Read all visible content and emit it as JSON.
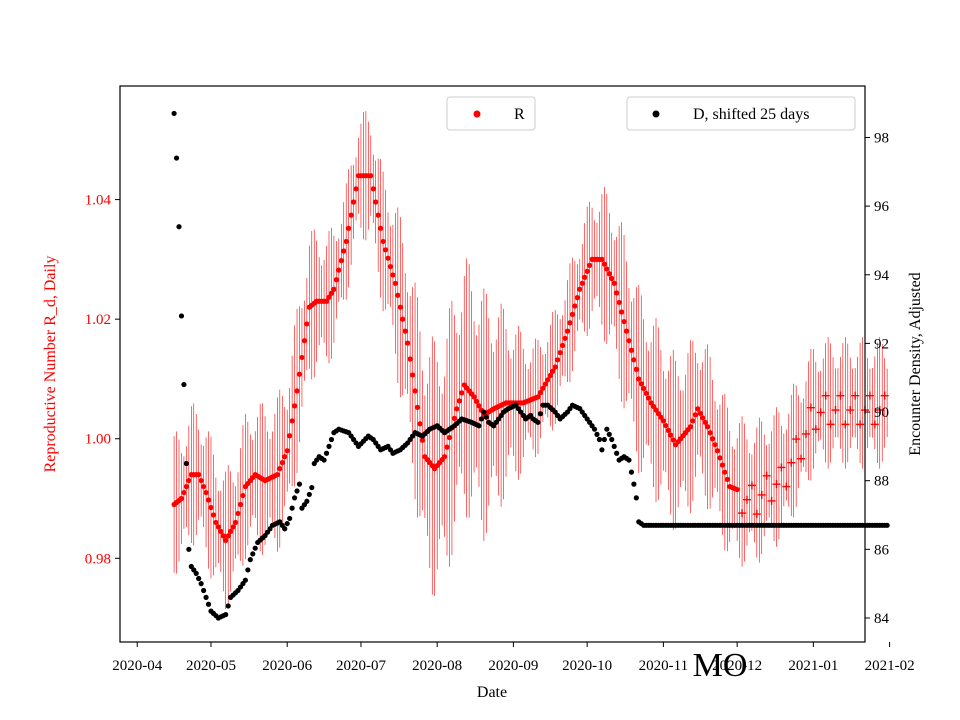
{
  "chart_data": {
    "type": "scatter",
    "xlabel": "Date",
    "ylabel_left": "Reproductive Number R_d, Daily",
    "ylabel_right": "Encounter Density, Adjusted",
    "ylim_left": [
      0.966,
      1.059
    ],
    "ylim_right": [
      83.3,
      99.5
    ],
    "xlim_days": [
      -7,
      296
    ],
    "x_origin": "2020-04-01",
    "x_ticks": [
      {
        "label": "2020-04",
        "day": 0
      },
      {
        "label": "2020-05",
        "day": 30
      },
      {
        "label": "2020-06",
        "day": 61
      },
      {
        "label": "2020-07",
        "day": 91
      },
      {
        "label": "2020-08",
        "day": 122
      },
      {
        "label": "2020-09",
        "day": 153
      },
      {
        "label": "2020-10",
        "day": 183
      },
      {
        "label": "2020-11",
        "day": 214
      },
      {
        "label": "2020-12",
        "day": 244
      },
      {
        "label": "2021-01",
        "day": 275
      },
      {
        "label": "2021-02",
        "day": 306
      }
    ],
    "y_ticks_left": [
      "0.98",
      "1.00",
      "1.02",
      "1.04"
    ],
    "y_ticks_left_values": [
      0.98,
      1.0,
      1.02,
      1.04
    ],
    "y_ticks_right": [
      "84",
      "86",
      "88",
      "90",
      "92",
      "94",
      "96",
      "98"
    ],
    "y_ticks_right_values": [
      84,
      86,
      88,
      90,
      92,
      94,
      96,
      98
    ],
    "annotation": "MO",
    "legend": [
      {
        "label": "R",
        "color": "#ff0000",
        "position": "top-center"
      },
      {
        "label": "D, shifted 25 days",
        "color": "#000000",
        "position": "top-right"
      }
    ],
    "series_R": {
      "name": "R",
      "color": "#ff0000",
      "x_range": [
        15,
        305
      ],
      "marker_dot_until_day": 245,
      "marker_after": "plus",
      "anchors": [
        [
          15,
          0.989
        ],
        [
          18,
          0.99
        ],
        [
          22,
          0.994
        ],
        [
          25,
          0.994
        ],
        [
          28,
          0.991
        ],
        [
          32,
          0.986
        ],
        [
          36,
          0.983
        ],
        [
          40,
          0.986
        ],
        [
          44,
          0.992
        ],
        [
          48,
          0.994
        ],
        [
          52,
          0.993
        ],
        [
          57,
          0.994
        ],
        [
          61,
          0.998
        ],
        [
          65,
          1.008
        ],
        [
          70,
          1.022
        ],
        [
          73,
          1.023
        ],
        [
          77,
          1.023
        ],
        [
          80,
          1.025
        ],
        [
          85,
          1.033
        ],
        [
          90,
          1.044
        ],
        [
          95,
          1.044
        ],
        [
          100,
          1.033
        ],
        [
          105,
          1.026
        ],
        [
          110,
          1.016
        ],
        [
          113,
          1.008
        ],
        [
          117,
          0.997
        ],
        [
          121,
          0.995
        ],
        [
          125,
          0.997
        ],
        [
          130,
          1.005
        ],
        [
          133,
          1.009
        ],
        [
          137,
          1.007
        ],
        [
          141,
          1.004
        ],
        [
          145,
          1.005
        ],
        [
          150,
          1.006
        ],
        [
          157,
          1.006
        ],
        [
          163,
          1.007
        ],
        [
          170,
          1.012
        ],
        [
          175,
          1.018
        ],
        [
          180,
          1.025
        ],
        [
          185,
          1.03
        ],
        [
          189,
          1.03
        ],
        [
          194,
          1.026
        ],
        [
          199,
          1.018
        ],
        [
          204,
          1.01
        ],
        [
          209,
          1.006
        ],
        [
          214,
          1.003
        ],
        [
          219,
          0.999
        ],
        [
          225,
          1.002
        ],
        [
          228,
          1.005
        ],
        [
          232,
          1.002
        ],
        [
          236,
          0.998
        ],
        [
          241,
          0.992
        ],
        [
          247,
          0.991
        ],
        [
          252,
          0.991
        ],
        [
          257,
          0.993
        ],
        [
          262,
          0.994
        ],
        [
          267,
          0.998
        ],
        [
          271,
          1.001
        ],
        [
          275,
          1.005
        ],
        [
          280,
          1.006
        ],
        [
          284,
          1.006
        ],
        [
          288,
          1.006
        ]
      ],
      "error_half_width": [
        [
          15,
          0.012
        ],
        [
          40,
          0.012
        ],
        [
          65,
          0.014
        ],
        [
          85,
          0.01
        ],
        [
          100,
          0.012
        ],
        [
          120,
          0.022
        ],
        [
          140,
          0.022
        ],
        [
          160,
          0.01
        ],
        [
          180,
          0.01
        ],
        [
          200,
          0.016
        ],
        [
          220,
          0.015
        ],
        [
          240,
          0.013
        ],
        [
          270,
          0.011
        ],
        [
          288,
          0.011
        ]
      ]
    },
    "series_D": {
      "name": "D, shifted 25 days",
      "color": "#000000",
      "x_range": [
        15,
        305
      ],
      "anchors": [
        [
          15,
          98.7
        ],
        [
          16,
          97.4
        ],
        [
          17,
          95.4
        ],
        [
          18,
          92.8
        ],
        [
          19,
          90.8
        ],
        [
          20,
          88.5
        ],
        [
          21,
          86.0
        ],
        [
          22,
          85.5
        ],
        [
          24,
          85.3
        ],
        [
          26,
          85.0
        ],
        [
          28,
          84.6
        ],
        [
          30,
          84.2
        ],
        [
          33,
          84.0
        ],
        [
          36,
          84.1
        ],
        [
          38,
          84.6
        ],
        [
          41,
          84.8
        ],
        [
          44,
          85.1
        ],
        [
          46,
          85.7
        ],
        [
          49,
          86.2
        ],
        [
          52,
          86.4
        ],
        [
          55,
          86.7
        ],
        [
          58,
          86.8
        ],
        [
          60,
          86.6
        ],
        [
          62,
          86.9
        ],
        [
          64,
          87.5
        ],
        [
          66,
          87.9
        ],
        [
          67,
          87.2
        ],
        [
          69,
          87.4
        ],
        [
          71,
          87.8
        ],
        [
          72,
          88.5
        ],
        [
          74,
          88.7
        ],
        [
          76,
          88.6
        ],
        [
          78,
          89.0
        ],
        [
          80,
          89.4
        ],
        [
          82,
          89.5
        ],
        [
          86,
          89.4
        ],
        [
          88,
          89.2
        ],
        [
          90,
          89.0
        ],
        [
          94,
          89.3
        ],
        [
          96,
          89.2
        ],
        [
          99,
          88.9
        ],
        [
          102,
          89.0
        ],
        [
          104,
          88.8
        ],
        [
          107,
          88.9
        ],
        [
          110,
          89.1
        ],
        [
          113,
          89.4
        ],
        [
          116,
          89.3
        ],
        [
          119,
          89.5
        ],
        [
          122,
          89.6
        ],
        [
          125,
          89.4
        ],
        [
          129,
          89.6
        ],
        [
          132,
          89.8
        ],
        [
          136,
          89.7
        ],
        [
          139,
          89.6
        ],
        [
          141,
          90.0
        ],
        [
          143,
          89.7
        ],
        [
          145,
          89.6
        ],
        [
          149,
          90.0
        ],
        [
          151,
          90.1
        ],
        [
          154,
          90.2
        ],
        [
          156,
          90.0
        ],
        [
          158,
          89.8
        ],
        [
          160,
          89.9
        ],
        [
          161,
          89.8
        ],
        [
          163,
          89.7
        ],
        [
          165,
          90.2
        ],
        [
          167,
          90.2
        ],
        [
          170,
          90.0
        ],
        [
          172,
          89.8
        ],
        [
          175,
          90.0
        ],
        [
          177,
          90.2
        ],
        [
          180,
          90.1
        ],
        [
          183,
          89.8
        ],
        [
          186,
          89.5
        ],
        [
          188,
          89.2
        ],
        [
          189,
          88.9
        ],
        [
          191,
          89.5
        ],
        [
          193,
          89.2
        ],
        [
          196,
          88.6
        ],
        [
          198,
          88.7
        ],
        [
          200,
          88.6
        ],
        [
          202,
          87.9
        ],
        [
          203,
          87.5
        ],
        [
          204,
          86.8
        ],
        [
          206,
          86.7
        ],
        [
          208,
          86.7
        ],
        [
          228,
          86.7
        ],
        [
          230,
          86.7
        ]
      ]
    }
  }
}
